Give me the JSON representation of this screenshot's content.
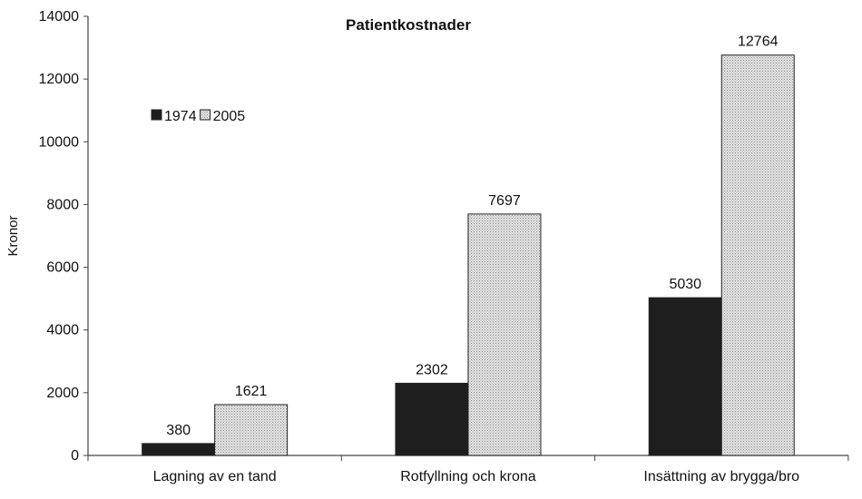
{
  "chart_data": {
    "type": "bar",
    "title": "Patientkostnader",
    "xlabel": "",
    "ylabel": "Kronor",
    "ylim": [
      0,
      14000
    ],
    "yticks": [
      0,
      2000,
      4000,
      6000,
      8000,
      10000,
      12000,
      14000
    ],
    "categories": [
      "Lagning av en tand",
      "Rotfyllning och krona",
      "Insättning av brygga/bro"
    ],
    "series": [
      {
        "name": "1974",
        "values": [
          380,
          2302,
          5030
        ],
        "color": "#1e1e1e",
        "fill": "solid"
      },
      {
        "name": "2005",
        "values": [
          1621,
          7697,
          12764
        ],
        "color": "#c8c8c8",
        "fill": "dotted"
      }
    ],
    "data_labels": true,
    "grid": false,
    "legend": "top-left"
  }
}
